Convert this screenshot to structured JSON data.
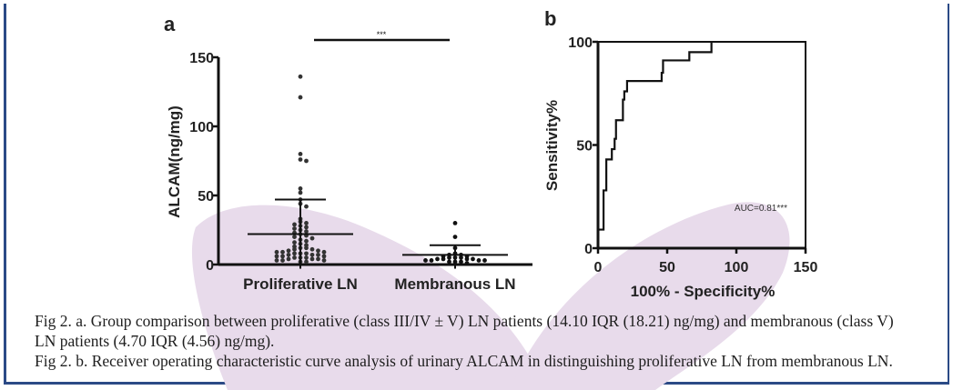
{
  "colors": {
    "border": "#2b4a86",
    "watermark": "#e8dbeb",
    "ink": "#111111"
  },
  "chart_data": [
    {
      "type": "scatter",
      "panel_label": "a",
      "ylabel": "ALCAM(ng/mg)",
      "ylim": [
        0,
        150
      ],
      "yticks": [
        "0",
        "50",
        "100",
        "150"
      ],
      "categories": [
        "Proliferative LN",
        "Membranous LN"
      ],
      "significance": "***",
      "series": [
        {
          "name": "Proliferative LN",
          "mean": 22,
          "sd_upper": 47,
          "sd_lower": -3,
          "values": [
            136,
            121,
            80,
            76,
            75,
            55,
            52,
            47,
            44,
            42,
            33,
            31,
            30,
            29,
            28,
            27,
            26,
            25,
            24,
            23,
            22,
            21,
            20,
            19,
            18,
            17,
            16,
            15,
            14,
            13,
            12,
            12,
            11,
            11,
            10,
            10,
            9,
            9,
            9,
            8,
            8,
            8,
            7,
            7,
            7,
            6,
            6,
            6,
            5,
            5,
            5,
            4,
            4,
            4,
            3,
            3,
            3,
            2,
            2
          ]
        },
        {
          "name": "Membranous LN",
          "mean": 7,
          "sd_upper": 14,
          "sd_lower": -3,
          "values": [
            30,
            20,
            12,
            8,
            7,
            7,
            6,
            6,
            5,
            5,
            5,
            4,
            4,
            4,
            4,
            3,
            3,
            3,
            3,
            2,
            2,
            2,
            1
          ]
        }
      ]
    },
    {
      "type": "line",
      "panel_label": "b",
      "xlabel": "100% - Specificity%",
      "ylabel": "Sensitivity%",
      "xlim": [
        0,
        150
      ],
      "ylim": [
        0,
        100
      ],
      "xticks": [
        "0",
        "50",
        "100",
        "150"
      ],
      "yticks": [
        "0",
        "50",
        "100"
      ],
      "annotation": "AUC=0.81***",
      "x": [
        0,
        0,
        4,
        4,
        6,
        6,
        10,
        10,
        12,
        12,
        13,
        13,
        18,
        18,
        19,
        19,
        21,
        21,
        46,
        46,
        47,
        47,
        66,
        66,
        82,
        82
      ],
      "y": [
        0,
        9,
        9,
        28,
        28,
        43,
        43,
        48,
        48,
        53,
        53,
        62,
        62,
        72,
        72,
        76,
        76,
        81,
        81,
        85,
        85,
        91,
        91,
        95,
        95,
        100
      ]
    }
  ],
  "caption": {
    "line1": "Fig 2. a. Group comparison between proliferative (class III/IV ± V) LN patients (14.10 IQR (18.21) ng/mg) and membranous (class V)",
    "line2": "LN patients (4.70 IQR (4.56) ng/mg).",
    "line3": "Fig 2. b. Receiver operating characteristic curve analysis of urinary ALCAM in distinguishing proliferative LN from membranous LN."
  }
}
